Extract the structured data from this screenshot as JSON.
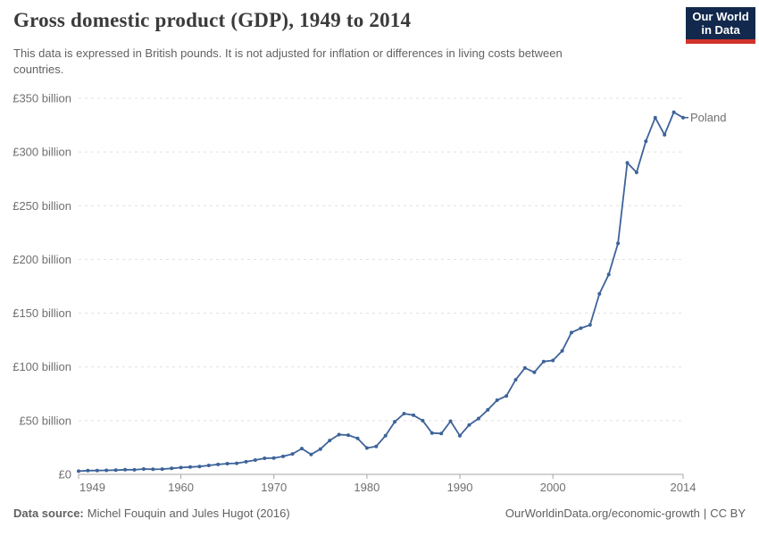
{
  "header": {
    "title": "Gross domestic product (GDP), 1949 to 2014",
    "subtitle_line1": "This data is expressed in British pounds. It is not adjusted for inflation or differences in living costs between",
    "subtitle_line2": "countries.",
    "logo": {
      "line1": "Our World",
      "line2": "in Data",
      "bg_color": "#12294d",
      "stripe_color": "#d0342c"
    }
  },
  "footer": {
    "source_label": "Data source:",
    "source_value": "Michel Fouquin and Jules Hugot (2016)",
    "link_text": "OurWorldinData.org/economic-growth",
    "separator": "|",
    "license_text": "CC BY"
  },
  "chart_data": {
    "type": "line",
    "title": "Gross domestic product (GDP), 1949 to 2014",
    "subtitle": "This data is expressed in British pounds. It is not adjusted for inflation or differences in living costs between countries.",
    "xlabel": "",
    "ylabel": "",
    "xlim": [
      1949,
      2014
    ],
    "ylim": [
      0,
      350
    ],
    "x_ticks": [
      1949,
      1960,
      1970,
      1980,
      1990,
      2000,
      2014
    ],
    "y_ticks": [
      0,
      50,
      100,
      150,
      200,
      250,
      300,
      350
    ],
    "y_tick_labels": [
      "£0",
      "£50 billion",
      "£100 billion",
      "£150 billion",
      "£200 billion",
      "£250 billion",
      "£300 billion",
      "£350 billion"
    ],
    "grid": "horizontal-dashed",
    "legend_position": "end-of-line-label",
    "unit": "billion GBP",
    "style": {
      "grid_color": "#e0e0e0",
      "axis_color": "#a5a5a5",
      "tick_label_color": "#707070"
    },
    "series": [
      {
        "name": "Poland",
        "color": "#3d6399",
        "x": [
          1949,
          1950,
          1951,
          1952,
          1953,
          1954,
          1955,
          1956,
          1957,
          1958,
          1959,
          1960,
          1961,
          1962,
          1963,
          1964,
          1965,
          1966,
          1967,
          1968,
          1969,
          1970,
          1971,
          1972,
          1973,
          1974,
          1975,
          1976,
          1977,
          1978,
          1979,
          1980,
          1981,
          1982,
          1983,
          1984,
          1985,
          1986,
          1987,
          1988,
          1989,
          1990,
          1991,
          1992,
          1993,
          1994,
          1995,
          1996,
          1997,
          1998,
          1999,
          2000,
          2001,
          2002,
          2003,
          2004,
          2005,
          2006,
          2007,
          2008,
          2009,
          2010,
          2011,
          2012,
          2013,
          2014
        ],
        "values": [
          3.0,
          3.5,
          3.6,
          3.7,
          3.9,
          4.3,
          4.2,
          5.0,
          4.7,
          4.9,
          5.6,
          6.3,
          6.8,
          7.3,
          8.3,
          9.2,
          10.0,
          10.3,
          11.7,
          13.3,
          15.0,
          15.2,
          16.7,
          19.0,
          24.0,
          18.5,
          23.5,
          31.5,
          37.0,
          36.5,
          33.5,
          24.5,
          26.0,
          36.0,
          49.0,
          56.5,
          55.0,
          50.0,
          38.5,
          38.0,
          49.5,
          36.0,
          46.0,
          52.0,
          60.0,
          69.0,
          73.0,
          88.0,
          99.0,
          95.0,
          105.0,
          106.0,
          115.0,
          132.0,
          136.0,
          139.0,
          168.0,
          186.0,
          215.0,
          290.0,
          281.0,
          310.0,
          332.0,
          316.0,
          337.0,
          332.0
        ]
      }
    ]
  }
}
